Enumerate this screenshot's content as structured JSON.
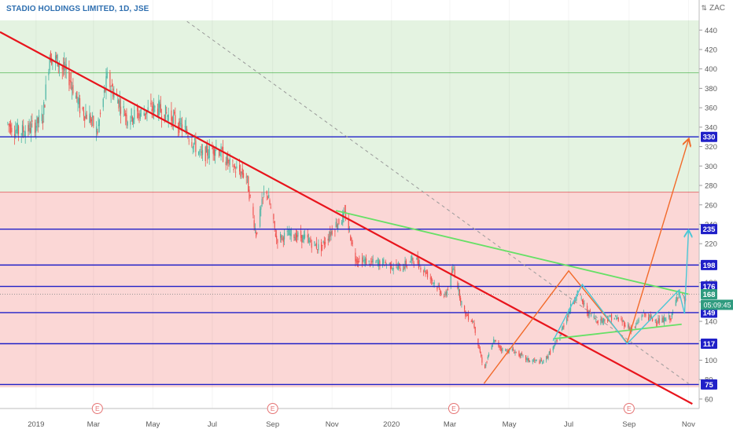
{
  "header": {
    "title": "STADIO HOLDINGS LIMITED, 1D, JSE",
    "currency": "ZAC",
    "currency_icon": "swap-icon"
  },
  "countdown": "05:09:45",
  "colors": {
    "background_green": "#e4f3e1",
    "background_red": "#fbd7d6",
    "candle_up": "#4db6a5",
    "candle_down": "#f05350",
    "support_line": "#2020c8",
    "down_trendline": "#e8141c",
    "triangle_line": "#66e066",
    "projection_orange": "#f26a2a",
    "projection_cyan": "#49c7d6",
    "dashed_line": "#9a9a9a",
    "price_label": "#2f9b7f",
    "countdown_label": "#2f9b7f"
  },
  "chart_data": {
    "type": "candlestick",
    "ylim": [
      50,
      450
    ],
    "y_ticks": [
      60,
      80,
      100,
      120,
      140,
      160,
      180,
      200,
      220,
      240,
      260,
      280,
      300,
      320,
      340,
      360,
      380,
      400,
      420,
      440
    ],
    "x_ticks": [
      "2019",
      "Mar",
      "May",
      "Jul",
      "Sep",
      "Nov",
      "2020",
      "Mar",
      "May",
      "Jul",
      "Sep",
      "Nov"
    ],
    "earnings_markers": [
      "E",
      "E",
      "E",
      "E"
    ],
    "zones": [
      {
        "name": "green-zone",
        "from": 273,
        "to": 450
      },
      {
        "name": "red-zone",
        "from": 72,
        "to": 273
      }
    ],
    "horizontal_levels": [
      330,
      235,
      198,
      176,
      149,
      117,
      75
    ],
    "current_price": 168,
    "price_series": [
      [
        "2018-12-01",
        345
      ],
      [
        "2018-12-15",
        335
      ],
      [
        "2018-12-29",
        340
      ],
      [
        "2019-01-08",
        350
      ],
      [
        "2019-01-15",
        415
      ],
      [
        "2019-01-25",
        405
      ],
      [
        "2019-02-05",
        390
      ],
      [
        "2019-02-15",
        360
      ],
      [
        "2019-02-25",
        350
      ],
      [
        "2019-03-05",
        335
      ],
      [
        "2019-03-15",
        390
      ],
      [
        "2019-03-25",
        370
      ],
      [
        "2019-04-05",
        350
      ],
      [
        "2019-04-20",
        355
      ],
      [
        "2019-05-05",
        360
      ],
      [
        "2019-05-20",
        350
      ],
      [
        "2019-06-05",
        335
      ],
      [
        "2019-06-20",
        310
      ],
      [
        "2019-07-05",
        320
      ],
      [
        "2019-07-20",
        300
      ],
      [
        "2019-08-05",
        290
      ],
      [
        "2019-08-15",
        230
      ],
      [
        "2019-08-25",
        280
      ],
      [
        "2019-09-05",
        225
      ],
      [
        "2019-09-20",
        230
      ],
      [
        "2019-10-05",
        225
      ],
      [
        "2019-10-20",
        215
      ],
      [
        "2019-11-05",
        240
      ],
      [
        "2019-11-15",
        250
      ],
      [
        "2019-11-25",
        205
      ],
      [
        "2019-12-10",
        200
      ],
      [
        "2019-12-25",
        200
      ],
      [
        "2020-01-10",
        195
      ],
      [
        "2020-01-25",
        205
      ],
      [
        "2020-02-10",
        185
      ],
      [
        "2020-02-25",
        165
      ],
      [
        "2020-03-05",
        195
      ],
      [
        "2020-03-15",
        150
      ],
      [
        "2020-03-25",
        140
      ],
      [
        "2020-04-05",
        90
      ],
      [
        "2020-04-15",
        120
      ],
      [
        "2020-04-25",
        110
      ],
      [
        "2020-05-05",
        110
      ],
      [
        "2020-05-20",
        100
      ],
      [
        "2020-06-05",
        98
      ],
      [
        "2020-06-20",
        120
      ],
      [
        "2020-07-01",
        150
      ],
      [
        "2020-07-10",
        170
      ],
      [
        "2020-07-20",
        150
      ],
      [
        "2020-08-01",
        140
      ],
      [
        "2020-08-15",
        145
      ],
      [
        "2020-08-25",
        140
      ],
      [
        "2020-09-05",
        130
      ],
      [
        "2020-09-15",
        148
      ],
      [
        "2020-09-25",
        142
      ],
      [
        "2020-10-05",
        140
      ],
      [
        "2020-10-15",
        145
      ],
      [
        "2020-10-22",
        172
      ],
      [
        "2020-10-29",
        160
      ]
    ],
    "trendlines": [
      {
        "name": "main-downtrend",
        "from": [
          "2018-11-25",
          438
        ],
        "to": [
          "2020-11-05",
          55
        ]
      },
      {
        "name": "dashed-diagonal",
        "from": [
          "2019-06-05",
          449
        ],
        "to": [
          "2020-11-01",
          76
        ]
      },
      {
        "name": "triangle-upper",
        "from": [
          "2019-11-05",
          254
        ],
        "to": [
          "2020-11-01",
          168
        ]
      },
      {
        "name": "triangle-lower",
        "from": [
          "2020-06-15",
          122
        ],
        "to": [
          "2020-10-25",
          137
        ]
      }
    ],
    "projection_paths": [
      {
        "name": "orange-projection",
        "points": [
          [
            "2020-04-05",
            76
          ],
          [
            "2020-07-01",
            192
          ],
          [
            "2020-08-30",
            118
          ],
          [
            "2020-11-01",
            327
          ]
        ]
      },
      {
        "name": "cyan-projection",
        "points": [
          [
            "2020-06-15",
            120
          ],
          [
            "2020-07-15",
            178
          ],
          [
            "2020-08-30",
            117
          ],
          [
            "2020-10-22",
            172
          ],
          [
            "2020-10-28",
            148
          ],
          [
            "2020-11-01",
            233
          ]
        ]
      }
    ]
  }
}
